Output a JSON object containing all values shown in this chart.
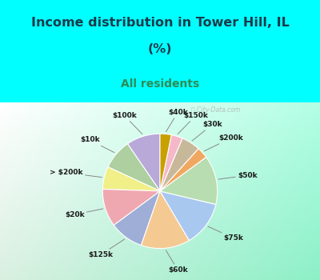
{
  "title_line1": "Income distribution in Tower Hill, IL",
  "title_line2": "(%)",
  "subtitle": "All residents",
  "title_color": "#1a3a4a",
  "subtitle_color": "#2e8b57",
  "bg_top_color": "#00ffff",
  "chart_bg_top_color": "#d4ede0",
  "chart_bg_bottom_color": "#e8f8f0",
  "labels": [
    "$100k",
    "$10k",
    "> $200k",
    "$20k",
    "$125k",
    "$60k",
    "$75k",
    "$50k",
    "$200k",
    "$30k",
    "$150k",
    "$40k"
  ],
  "values": [
    9,
    8,
    6,
    10,
    9,
    13,
    12,
    13,
    3,
    5,
    3,
    3
  ],
  "colors": [
    "#b8a9d9",
    "#aecfa0",
    "#f0ef88",
    "#f0a8b0",
    "#9faed6",
    "#f5c992",
    "#a8c8f0",
    "#b8ddb0",
    "#f0a860",
    "#c8b89a",
    "#f5b8c8",
    "#c8a000"
  ],
  "startangle": 90,
  "watermark": "City-Data.com"
}
